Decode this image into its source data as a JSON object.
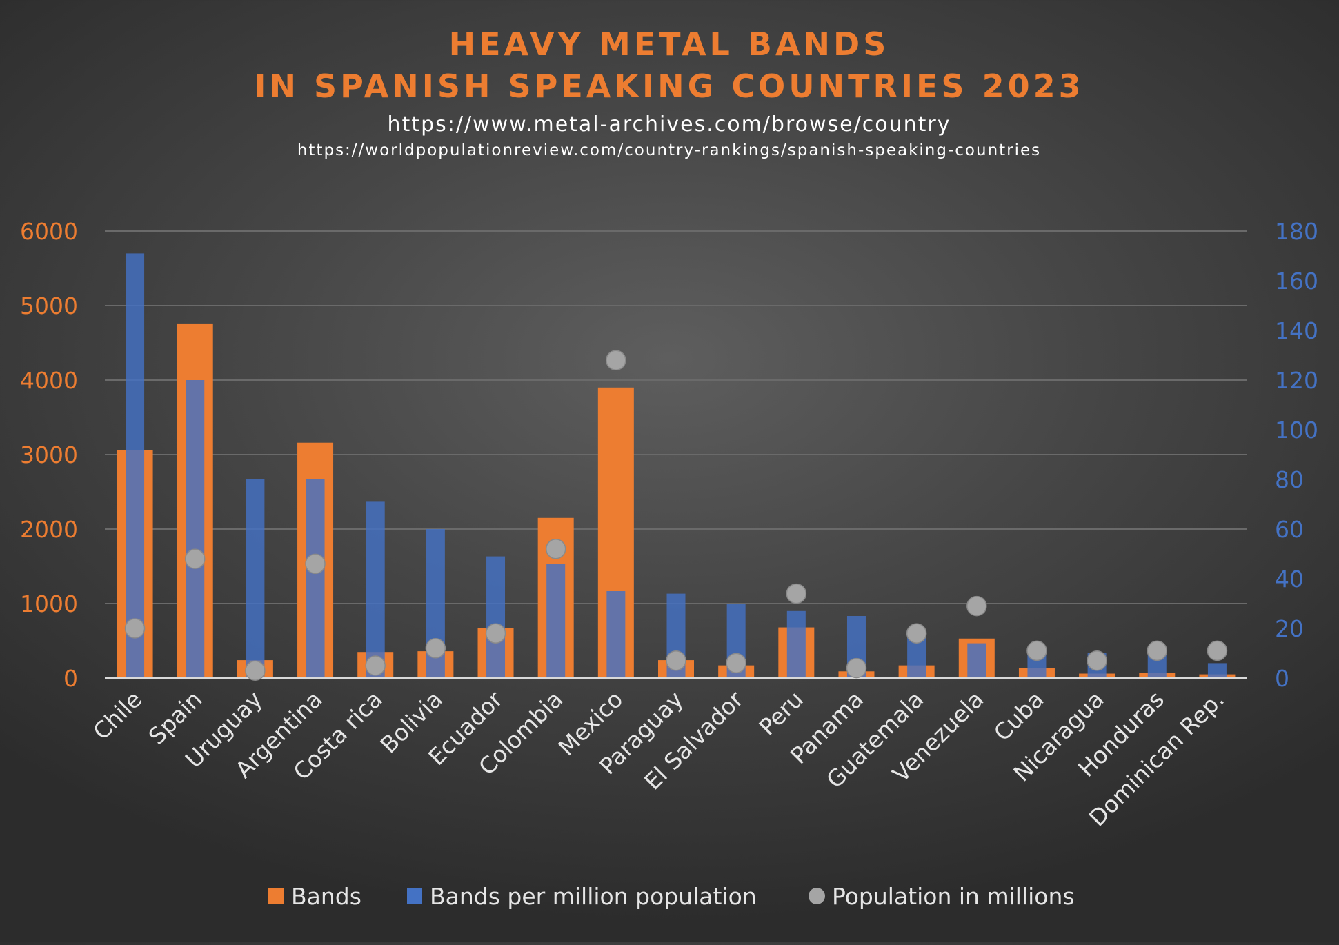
{
  "chart_data": {
    "type": "bar",
    "title": [
      "HEAVY METAL BANDS",
      "IN SPANISH SPEAKING COUNTRIES 2023"
    ],
    "subtitle": [
      "https://www.metal-archives.com/browse/country",
      "https://worldpopulationreview.com/country-rankings/spanish-speaking-countries"
    ],
    "categories": [
      "Chile",
      "Spain",
      "Uruguay",
      "Argentina",
      "Costa rica",
      "Bolivia",
      "Ecuador",
      "Colombia",
      "Mexico",
      "Paraguay",
      "El Salvador",
      "Peru",
      "Panama",
      "Guatemala",
      "Venezuela",
      "Cuba",
      "Nicaragua",
      "Honduras",
      "Dominican Rep."
    ],
    "series": [
      {
        "name": "Bands",
        "axis": "left",
        "kind": "bar",
        "color": "#ed7d31",
        "values": [
          3060,
          4760,
          240,
          3160,
          350,
          360,
          670,
          2150,
          3900,
          240,
          170,
          680,
          90,
          170,
          530,
          130,
          60,
          70,
          50
        ]
      },
      {
        "name": "Bands per million population",
        "axis": "right",
        "kind": "bar",
        "color": "#4472c4",
        "values": [
          171,
          120,
          80,
          80,
          71,
          60,
          49,
          46,
          35,
          34,
          30,
          27,
          25,
          19,
          14,
          12,
          10,
          10,
          6
        ]
      },
      {
        "name": "Population in millions",
        "axis": "right",
        "kind": "point",
        "color": "#a5a5a5",
        "values": [
          20,
          48,
          3,
          46,
          5,
          12,
          18,
          52,
          128,
          7,
          6,
          34,
          4,
          18,
          29,
          11,
          7,
          11,
          11
        ]
      }
    ],
    "y_left": {
      "min": 0,
      "max": 6000,
      "ticks": [
        "0",
        "1000",
        "2000",
        "3000",
        "4000",
        "5000",
        "6000"
      ]
    },
    "y_right": {
      "min": 0,
      "max": 180,
      "ticks": [
        "0",
        "20",
        "40",
        "60",
        "80",
        "100",
        "120",
        "140",
        "160",
        "180"
      ]
    },
    "grid": true,
    "legend": "bottom",
    "legend_entries": [
      "Bands",
      "Bands per million population",
      "Population in millions"
    ]
  }
}
